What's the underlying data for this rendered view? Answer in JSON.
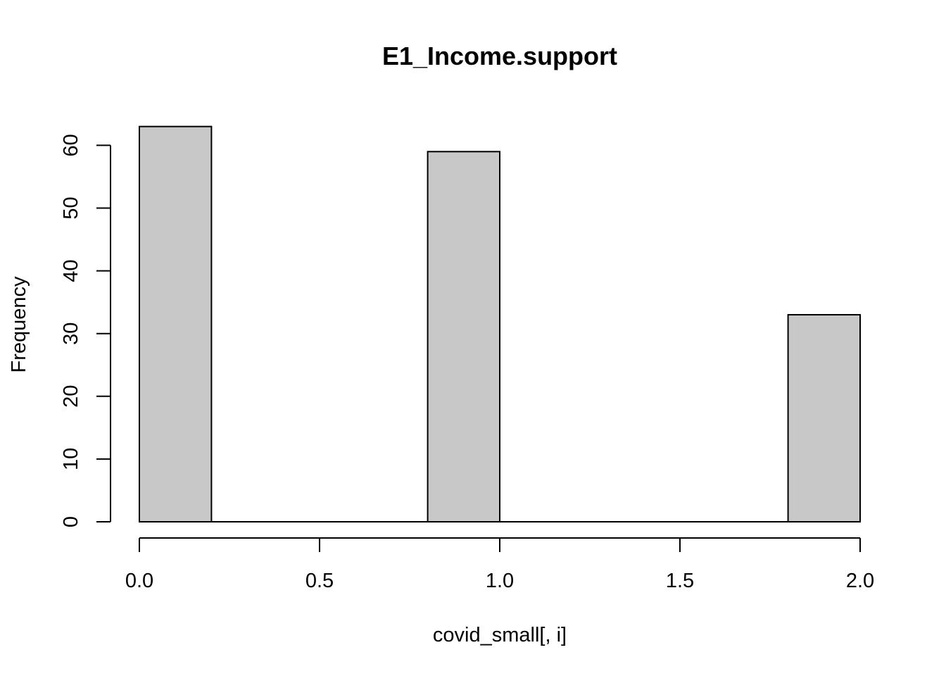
{
  "chart_data": {
    "type": "bar",
    "subtype": "histogram",
    "title": "E1_Income.support",
    "xlabel": "covid_small[, i]",
    "ylabel": "Frequency",
    "bins": [
      {
        "start": 0.0,
        "end": 0.2,
        "value": 63
      },
      {
        "start": 0.2,
        "end": 0.4,
        "value": 0
      },
      {
        "start": 0.4,
        "end": 0.6,
        "value": 0
      },
      {
        "start": 0.6,
        "end": 0.8,
        "value": 0
      },
      {
        "start": 0.8,
        "end": 1.0,
        "value": 59
      },
      {
        "start": 1.0,
        "end": 1.2,
        "value": 0
      },
      {
        "start": 1.2,
        "end": 1.4,
        "value": 0
      },
      {
        "start": 1.4,
        "end": 1.6,
        "value": 0
      },
      {
        "start": 1.6,
        "end": 1.8,
        "value": 0
      },
      {
        "start": 1.8,
        "end": 2.0,
        "value": 33
      }
    ],
    "xlim": [
      0,
      2
    ],
    "ylim": [
      0,
      63
    ],
    "x_ticks": [
      "0.0",
      "0.5",
      "1.0",
      "1.5",
      "2.0"
    ],
    "y_ticks": [
      "0",
      "10",
      "20",
      "30",
      "40",
      "50",
      "60"
    ],
    "grid": false,
    "legend": "none",
    "bar_color": "#c8c8c8",
    "edge_color": "#000000"
  }
}
